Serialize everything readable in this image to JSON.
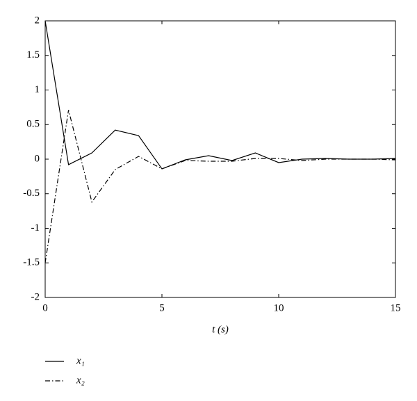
{
  "chart_data": {
    "type": "line",
    "x_label": "t (s)",
    "x": [
      0,
      1,
      2,
      3,
      4,
      5,
      6,
      7,
      8,
      9,
      10,
      11,
      12,
      13,
      14,
      15
    ],
    "series": [
      {
        "name": "x₁",
        "color": "#000000",
        "linestyle": "solid",
        "values": [
          2,
          -0.08,
          0.09,
          0.42,
          0.34,
          -0.14,
          -0.01,
          0.05,
          -0.02,
          0.09,
          -0.05,
          0.0,
          0.01,
          0.0,
          0.0,
          0.01
        ]
      },
      {
        "name": "x₂",
        "color": "#000000",
        "linestyle": "dashdot",
        "values": [
          -1.5,
          0.71,
          -0.62,
          -0.15,
          0.04,
          -0.14,
          -0.02,
          -0.03,
          -0.03,
          0.01,
          0.01,
          -0.02,
          0.0,
          0.0,
          0.0,
          -0.01
        ]
      }
    ],
    "xlim": [
      0,
      15
    ],
    "xticks": [
      0,
      5,
      10,
      15
    ],
    "ylim": [
      -2,
      2
    ],
    "yticks": [
      -2,
      -1.5,
      -1,
      -0.5,
      0,
      0.5,
      1,
      1.5,
      2
    ],
    "grid": false,
    "legend": "below"
  }
}
